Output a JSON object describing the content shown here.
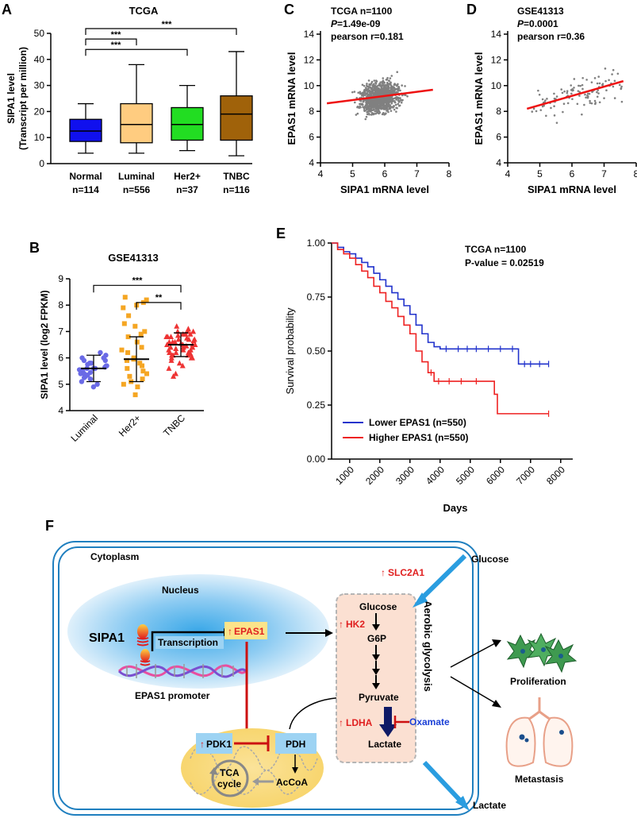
{
  "panels": {
    "A": "A",
    "B": "B",
    "C": "C",
    "D": "D",
    "E": "E",
    "F": "F"
  },
  "chart_data": [
    {
      "panel": "A",
      "type": "box",
      "title": "TCGA",
      "ylabel": [
        "SIPA1 level",
        "(Transcript per million)"
      ],
      "ylim": [
        0,
        50
      ],
      "yticks": [
        0,
        10,
        20,
        30,
        40,
        50
      ],
      "categories": [
        "Normal",
        "Luminal",
        "Her2+",
        "TNBC"
      ],
      "counts": [
        "n=114",
        "n=556",
        "n=37",
        "n=116"
      ],
      "colors": [
        "#1010ee",
        "#ffcc80",
        "#22dd22",
        "#a0620a"
      ],
      "boxes": [
        {
          "min": 4,
          "q1": 8.5,
          "median": 12.5,
          "q3": 17,
          "max": 23
        },
        {
          "min": 4,
          "q1": 8,
          "median": 15,
          "q3": 23,
          "max": 38
        },
        {
          "min": 5,
          "q1": 9,
          "median": 15,
          "q3": 21.5,
          "max": 30
        },
        {
          "min": 3,
          "q1": 9,
          "median": 19,
          "q3": 26,
          "max": 43
        }
      ],
      "significance": [
        {
          "from": 0,
          "to": 3,
          "label": "***",
          "level": 50
        },
        {
          "from": 0,
          "to": 1,
          "label": "***",
          "level": 46
        },
        {
          "from": 0,
          "to": 2,
          "label": "***",
          "level": 42
        }
      ]
    },
    {
      "panel": "B",
      "type": "scatter",
      "title": "GSE41313",
      "ylabel": "SIPA1 level (log2 FPKM)",
      "ylim": [
        4,
        9
      ],
      "yticks": [
        4,
        5,
        6,
        7,
        8,
        9
      ],
      "categories": [
        "Luminal",
        "Her2+",
        "TNBC"
      ],
      "colors": [
        "#6a6ae6",
        "#f5a623",
        "#ee3333"
      ],
      "markers": [
        "circle",
        "square",
        "triangle"
      ],
      "means": [
        5.6,
        5.95,
        6.5
      ],
      "sd": [
        0.5,
        0.85,
        0.45
      ],
      "points": [
        [
          5.9,
          5.7,
          5.4,
          5.2,
          6.1,
          5.5,
          5.8,
          5.6,
          5.0,
          5.3,
          6.0,
          5.7,
          5.45,
          5.9,
          4.9,
          5.6,
          5.1,
          6.2,
          5.35,
          5.75,
          5.55,
          5.65,
          5.25,
          6.0,
          5.8,
          5.4,
          5.6
        ],
        [
          8.3,
          8.2,
          8.1,
          7.9,
          7.6,
          7.3,
          7.0,
          6.8,
          6.6,
          6.4,
          6.2,
          6.0,
          5.9,
          5.8,
          5.6,
          5.5,
          5.4,
          5.3,
          5.2,
          5.1,
          5.0,
          4.9,
          4.6,
          6.3,
          6.9,
          5.7,
          8.0,
          7.2,
          5.95
        ],
        [
          7.2,
          7.1,
          7.0,
          7.0,
          6.9,
          6.8,
          6.8,
          6.7,
          6.7,
          6.6,
          6.6,
          6.5,
          6.5,
          6.5,
          6.4,
          6.4,
          6.4,
          6.3,
          6.3,
          6.2,
          6.2,
          6.1,
          6.1,
          6.0,
          6.0,
          5.9,
          5.8,
          5.7,
          5.6,
          5.4,
          6.9,
          7.0,
          6.6,
          6.3,
          6.8,
          6.5,
          6.2,
          6.0,
          6.7,
          6.4,
          6.9,
          6.1,
          6.55,
          6.35,
          6.85,
          6.65,
          6.15,
          6.45,
          5.3,
          6.75
        ]
      ],
      "significance": [
        {
          "from": 0,
          "to": 2,
          "label": "***",
          "level": 8.75
        },
        {
          "from": 1,
          "to": 2,
          "label": "**",
          "level": 8.1
        }
      ]
    },
    {
      "panel": "C",
      "type": "scatter",
      "annotations": [
        "TCGA n=1100",
        "P=1.49e-09",
        "pearson r=0.181"
      ],
      "xlabel": "SIPA1 mRNA level",
      "ylabel": "EPAS1 mRNA level",
      "xlim": [
        4,
        8
      ],
      "ylim": [
        4,
        14
      ],
      "xticks": [
        4,
        5,
        6,
        7,
        8
      ],
      "yticks": [
        4,
        6,
        8,
        10,
        12,
        14
      ],
      "n_points": 1100,
      "fit": {
        "x": [
          4.2,
          7.5
        ],
        "y": [
          8.62,
          9.68
        ]
      }
    },
    {
      "panel": "D",
      "type": "scatter",
      "annotations": [
        "GSE41313",
        "P=0.0001",
        "pearson r=0.36"
      ],
      "xlabel": "SIPA1 mRNA level",
      "ylabel": "EPAS1 mRNA level",
      "xlim": [
        4,
        8
      ],
      "ylim": [
        4,
        14
      ],
      "xticks": [
        4,
        5,
        6,
        7,
        8
      ],
      "yticks": [
        4,
        6,
        8,
        10,
        12,
        14
      ],
      "n_points": 106,
      "fit": {
        "x": [
          4.6,
          7.6
        ],
        "y": [
          8.2,
          10.35
        ]
      }
    },
    {
      "panel": "E",
      "type": "line",
      "annotations": [
        "TCGA n=1100",
        "P-value = 0.02519"
      ],
      "xlabel": "Days",
      "ylabel": "Survival probability",
      "xlim": [
        400,
        8400
      ],
      "ylim": [
        0,
        1
      ],
      "xticks": [
        1000,
        2000,
        3000,
        4000,
        5000,
        6000,
        7000,
        8000
      ],
      "yticks": [
        "0.00",
        "0.25",
        "0.50",
        "0.75",
        "1.00"
      ],
      "series": [
        {
          "name": "Lower EPAS1 (n=550)",
          "color": "#2233cc",
          "x": [
            400,
            600,
            800,
            1000,
            1200,
            1400,
            1600,
            1800,
            2000,
            2200,
            2400,
            2600,
            2800,
            3000,
            3200,
            3400,
            3600,
            3800,
            4000,
            6600,
            6600,
            7600
          ],
          "y": [
            1.0,
            0.98,
            0.96,
            0.95,
            0.93,
            0.91,
            0.89,
            0.86,
            0.83,
            0.8,
            0.77,
            0.74,
            0.71,
            0.67,
            0.62,
            0.58,
            0.54,
            0.52,
            0.51,
            0.51,
            0.44,
            0.44
          ],
          "censor_x": [
            4200,
            4600,
            4900,
            5200,
            5600,
            6000,
            6400,
            6800,
            7000,
            7300,
            7600
          ]
        },
        {
          "name": "Higher EPAS1 (n=550)",
          "color": "#ee2222",
          "x": [
            400,
            600,
            800,
            1000,
            1200,
            1400,
            1600,
            1800,
            2000,
            2200,
            2400,
            2600,
            2800,
            3000,
            3200,
            3400,
            3600,
            3800,
            5800,
            5800,
            5900,
            5900,
            7600
          ],
          "y": [
            1.0,
            0.97,
            0.95,
            0.93,
            0.9,
            0.87,
            0.84,
            0.8,
            0.77,
            0.73,
            0.7,
            0.66,
            0.62,
            0.58,
            0.5,
            0.45,
            0.4,
            0.36,
            0.36,
            0.3,
            0.3,
            0.21,
            0.21
          ],
          "censor_x": [
            3700,
            3950,
            4300,
            4700,
            5200,
            7600
          ]
        }
      ]
    }
  ],
  "schematic": {
    "cytoplasm": "Cytoplasm",
    "nucleus": "Nucleus",
    "sipa1": "SIPA1",
    "transcription": "Transcription",
    "epas1": "EPAS1",
    "epas1_promoter": "EPAS1 promoter",
    "glucose_out": "Glucose",
    "slc2a1": "SLC2A1",
    "glucose": "Glucose",
    "hk2": "HK2",
    "g6p": "G6P",
    "pyruvate": "Pyruvate",
    "ldha": "LDHA",
    "oxamate": "Oxamate",
    "lactate": "Lactate",
    "aerobic_glycolysis": "Aerobic glycolysis",
    "pdk1": "PDK1",
    "pdh": "PDH",
    "tca": "TCA",
    "cycle": "cycle",
    "acoa": "AcCoA",
    "proliferation": "Proliferation",
    "metastasis": "Metastasis",
    "lactate_out": "Lactate"
  }
}
